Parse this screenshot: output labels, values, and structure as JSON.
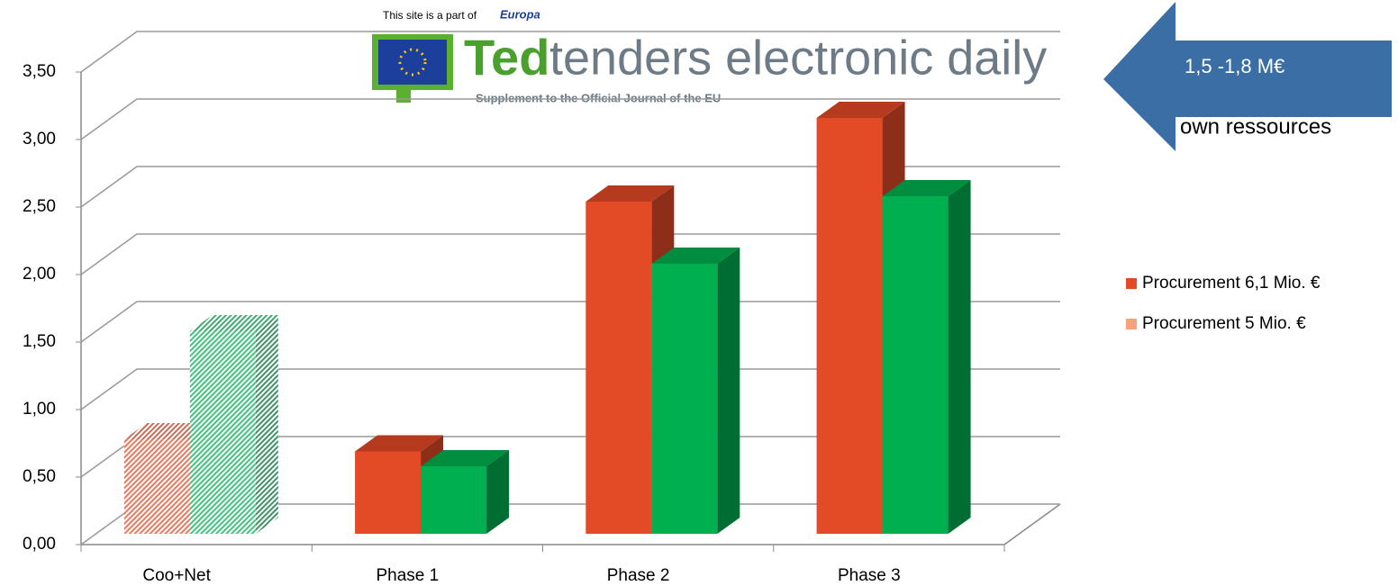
{
  "chart_data": {
    "type": "bar3d",
    "categories": [
      "Coo+Net",
      "Phase 1",
      "Phase 2",
      "Phase 3"
    ],
    "series": [
      {
        "name": "Procurement 6,1 Mio. €",
        "color": "#e34a26",
        "legend_color": "#e34a26",
        "values": [
          0.7,
          0.61,
          2.46,
          3.08
        ]
      },
      {
        "name": "Procurement 5 Mio. €",
        "color": "#00b050",
        "legend_color": "#f9a37a",
        "values": [
          1.5,
          0.5,
          2.0,
          2.5
        ]
      }
    ],
    "hatched": [
      true,
      false,
      false,
      false
    ],
    "ylim": [
      0,
      3.5
    ],
    "yticks": [
      {
        "value": 0,
        "label": "0,00"
      },
      {
        "value": 0.5,
        "label": "0,50"
      },
      {
        "value": 1,
        "label": "1,00"
      },
      {
        "value": 1.5,
        "label": "1,50"
      },
      {
        "value": 2,
        "label": "2,00"
      },
      {
        "value": 2.5,
        "label": "2,50"
      },
      {
        "value": 3,
        "label": "3,00"
      },
      {
        "value": 3.5,
        "label": "3,50"
      }
    ],
    "grid": true,
    "legend": "right",
    "annotation": {
      "line1": "1,5 -1,8 M€",
      "line2": "own ressources",
      "color": "#3a6ea5"
    },
    "logo": {
      "tagline": "This site is a part of",
      "brand": "Europa",
      "name": "Ted",
      "subtitle": "tenders electronic daily",
      "supplement": "Supplement to the Official Journal of the EU"
    }
  }
}
